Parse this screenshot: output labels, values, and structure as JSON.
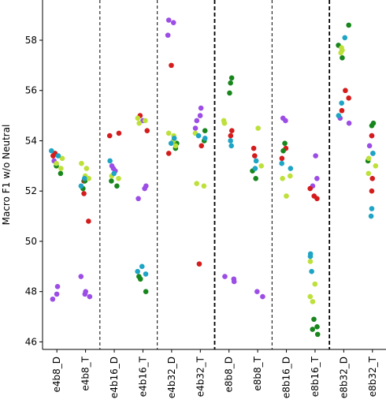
{
  "chart_data": {
    "type": "scatter",
    "ylabel": "Macro F1 w/o Neutral",
    "xlabel": "",
    "ylim": [
      45.7,
      59.6
    ],
    "yticks": [
      46,
      48,
      50,
      52,
      54,
      56,
      58
    ],
    "categories": [
      "e4b8_D",
      "e4b8_T",
      "e4b16_D",
      "e4b16_T",
      "e4b32_D",
      "e4b32_T",
      "e8b8_D",
      "e8b8_T",
      "e8b16_D",
      "e8b16_T",
      "e8b32_D",
      "e8b32_T"
    ],
    "separators": [
      {
        "after_index": 1,
        "style": "dashed"
      },
      {
        "after_index": 3,
        "style": "dashed"
      },
      {
        "after_index": 5,
        "style": "dashed-bold"
      },
      {
        "after_index": 7,
        "style": "dashed"
      },
      {
        "after_index": 9,
        "style": "dashed-bold"
      }
    ],
    "colors": {
      "purple": "#9b4de6",
      "red": "#d41c1c",
      "green": "#17861c",
      "lime": "#bde03a",
      "cyan": "#1ea4c4"
    },
    "series": [
      {
        "color": "purple",
        "points": [
          [
            0,
            47.9
          ],
          [
            0,
            48.2
          ],
          [
            0,
            47.7
          ],
          [
            0,
            53.2
          ],
          [
            1,
            47.9
          ],
          [
            1,
            48.0
          ],
          [
            1,
            48.6
          ],
          [
            1,
            47.8
          ],
          [
            2,
            52.8
          ],
          [
            2,
            52.9
          ],
          [
            2,
            53.0
          ],
          [
            3,
            52.2
          ],
          [
            3,
            52.1
          ],
          [
            3,
            51.7
          ],
          [
            3,
            54.8
          ],
          [
            4,
            58.8
          ],
          [
            4,
            58.7
          ],
          [
            4,
            58.2
          ],
          [
            5,
            55.3
          ],
          [
            5,
            55.0
          ],
          [
            5,
            54.8
          ],
          [
            5,
            54.5
          ],
          [
            6,
            48.5
          ],
          [
            6,
            48.4
          ],
          [
            6,
            48.6
          ],
          [
            7,
            48.0
          ],
          [
            7,
            47.8
          ],
          [
            8,
            54.9
          ],
          [
            8,
            54.8
          ],
          [
            9,
            53.4
          ],
          [
            9,
            52.5
          ],
          [
            9,
            52.2
          ],
          [
            10,
            54.9
          ],
          [
            10,
            54.7
          ],
          [
            11,
            54.2
          ],
          [
            11,
            53.8
          ],
          [
            11,
            53.5
          ]
        ]
      },
      {
        "color": "red",
        "points": [
          [
            0,
            53.5
          ],
          [
            0,
            53.4
          ],
          [
            1,
            50.8
          ],
          [
            1,
            51.9
          ],
          [
            1,
            52.4
          ],
          [
            2,
            54.2
          ],
          [
            2,
            54.3
          ],
          [
            3,
            55.0
          ],
          [
            3,
            54.4
          ],
          [
            4,
            57.0
          ],
          [
            4,
            53.5
          ],
          [
            5,
            53.8
          ],
          [
            5,
            49.1
          ],
          [
            6,
            54.4
          ],
          [
            6,
            54.2
          ],
          [
            7,
            53.7
          ],
          [
            7,
            53.4
          ],
          [
            8,
            53.7
          ],
          [
            8,
            53.3
          ],
          [
            9,
            52.1
          ],
          [
            9,
            51.8
          ],
          [
            9,
            51.7
          ],
          [
            10,
            56.0
          ],
          [
            10,
            55.7
          ],
          [
            10,
            55.2
          ],
          [
            11,
            54.2
          ],
          [
            11,
            52.5
          ],
          [
            11,
            52.0
          ]
        ]
      },
      {
        "color": "green",
        "points": [
          [
            0,
            52.7
          ],
          [
            0,
            53.0
          ],
          [
            1,
            52.4
          ],
          [
            1,
            52.1
          ],
          [
            2,
            52.4
          ],
          [
            2,
            52.2
          ],
          [
            3,
            48.6
          ],
          [
            3,
            48.5
          ],
          [
            3,
            48.0
          ],
          [
            4,
            53.7
          ],
          [
            4,
            53.9
          ],
          [
            5,
            54.4
          ],
          [
            5,
            54.0
          ],
          [
            6,
            56.5
          ],
          [
            6,
            56.3
          ],
          [
            6,
            55.9
          ],
          [
            7,
            52.8
          ],
          [
            7,
            52.5
          ],
          [
            8,
            53.9
          ],
          [
            8,
            53.6
          ],
          [
            9,
            46.9
          ],
          [
            9,
            46.6
          ],
          [
            9,
            46.3
          ],
          [
            9,
            46.5
          ],
          [
            10,
            58.6
          ],
          [
            10,
            57.8
          ],
          [
            10,
            57.3
          ],
          [
            11,
            54.7
          ],
          [
            11,
            54.6
          ],
          [
            11,
            53.2
          ]
        ]
      },
      {
        "color": "lime",
        "points": [
          [
            0,
            53.3
          ],
          [
            0,
            53.1
          ],
          [
            0,
            52.9
          ],
          [
            1,
            52.9
          ],
          [
            1,
            52.6
          ],
          [
            1,
            53.1
          ],
          [
            1,
            52.5
          ],
          [
            2,
            52.5
          ],
          [
            2,
            52.6
          ],
          [
            3,
            54.9
          ],
          [
            3,
            54.7
          ],
          [
            3,
            54.8
          ],
          [
            4,
            54.2
          ],
          [
            4,
            54.0
          ],
          [
            4,
            53.8
          ],
          [
            4,
            54.3
          ],
          [
            5,
            52.2
          ],
          [
            5,
            52.3
          ],
          [
            5,
            54.3
          ],
          [
            6,
            54.7
          ],
          [
            6,
            54.8
          ],
          [
            7,
            54.5
          ],
          [
            7,
            53.0
          ],
          [
            8,
            52.6
          ],
          [
            8,
            52.5
          ],
          [
            8,
            51.8
          ],
          [
            9,
            47.8
          ],
          [
            9,
            47.6
          ],
          [
            9,
            48.3
          ],
          [
            9,
            49.2
          ],
          [
            10,
            57.6
          ],
          [
            10,
            57.5
          ],
          [
            10,
            57.7
          ],
          [
            11,
            53.0
          ],
          [
            11,
            52.7
          ],
          [
            11,
            53.3
          ]
        ]
      },
      {
        "color": "cyan",
        "points": [
          [
            0,
            53.6
          ],
          [
            0,
            53.4
          ],
          [
            1,
            52.2
          ],
          [
            1,
            52.5
          ],
          [
            2,
            53.2
          ],
          [
            2,
            52.7
          ],
          [
            3,
            49.0
          ],
          [
            3,
            48.8
          ],
          [
            3,
            48.7
          ],
          [
            4,
            53.9
          ],
          [
            4,
            54.1
          ],
          [
            5,
            54.2
          ],
          [
            5,
            54.1
          ],
          [
            6,
            53.8
          ],
          [
            6,
            54.0
          ],
          [
            7,
            52.9
          ],
          [
            7,
            53.2
          ],
          [
            8,
            53.1
          ],
          [
            8,
            52.9
          ],
          [
            9,
            49.5
          ],
          [
            9,
            49.4
          ],
          [
            9,
            48.8
          ],
          [
            10,
            55.5
          ],
          [
            10,
            55.0
          ],
          [
            10,
            58.1
          ],
          [
            11,
            51.3
          ],
          [
            11,
            51.0
          ],
          [
            11,
            53.5
          ]
        ]
      }
    ]
  }
}
